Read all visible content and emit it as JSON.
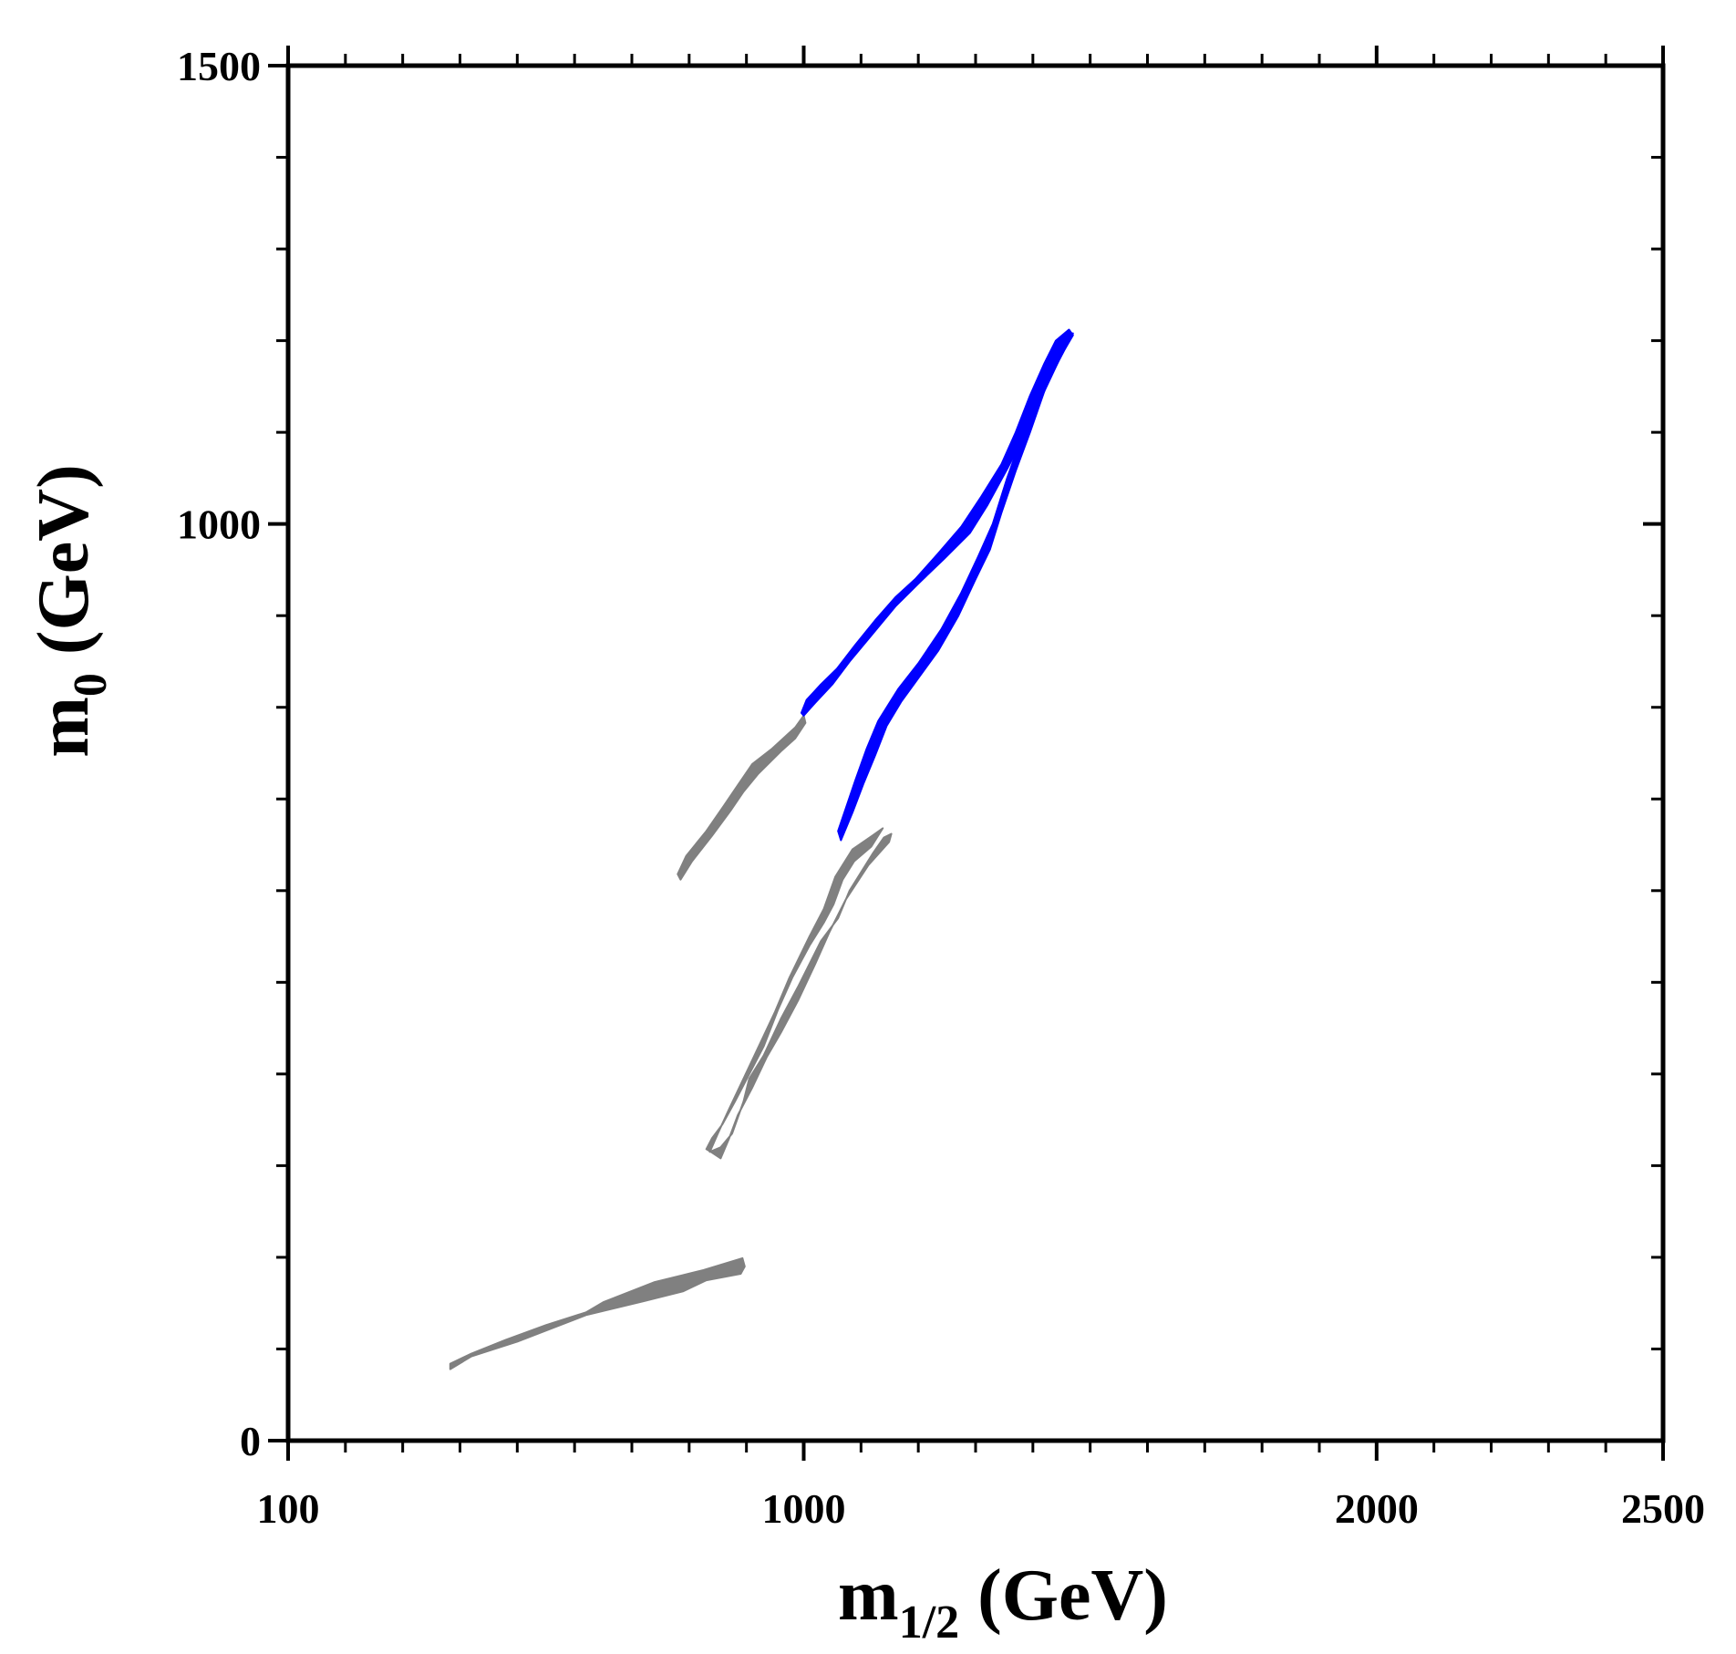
{
  "chart_data": {
    "type": "area",
    "title": "",
    "xlabel": {
      "main": "m",
      "sub": "1/2",
      "unit": " (GeV)"
    },
    "ylabel": {
      "main": "m",
      "sub": "0",
      "unit": " (GeV)"
    },
    "x_tick_labels": [
      {
        "label": "100",
        "value": 100
      },
      {
        "label": "1000",
        "value": 1000
      },
      {
        "label": "2000",
        "value": 2000
      },
      {
        "label": "2500",
        "value": 2500
      }
    ],
    "y_tick_labels": [
      {
        "label": "0",
        "value": 0
      },
      {
        "label": "1000",
        "value": 1000
      },
      {
        "label": "1500",
        "value": 1500
      }
    ],
    "xlim": [
      100,
      2500
    ],
    "ylim": [
      0,
      1500
    ],
    "x_minor_ticks": [
      200,
      300,
      400,
      500,
      600,
      700,
      800,
      900,
      1100,
      1200,
      1300,
      1400,
      1500,
      1600,
      1700,
      1800,
      1900,
      2100,
      2200,
      2300,
      2400
    ],
    "y_minor_ticks": [
      100,
      200,
      300,
      400,
      500,
      600,
      700,
      800,
      900,
      1100,
      1200,
      1300,
      1400
    ],
    "grid": false,
    "colors": {
      "gray": "#808080",
      "blue": "#0000ff"
    },
    "series": [
      {
        "name": "gray lower band",
        "color": "#808080",
        "polygon": [
          [
            383,
            84
          ],
          [
            420,
            95
          ],
          [
            480,
            110
          ],
          [
            550,
            126
          ],
          [
            620,
            140
          ],
          [
            650,
            151
          ],
          [
            740,
            173
          ],
          [
            825,
            186
          ],
          [
            893,
            199
          ],
          [
            897,
            190
          ],
          [
            890,
            182
          ],
          [
            830,
            175
          ],
          [
            790,
            163
          ],
          [
            720,
            152
          ],
          [
            620,
            137
          ],
          [
            500,
            108
          ],
          [
            420,
            92
          ],
          [
            383,
            78
          ]
        ]
      },
      {
        "name": "gray middle band",
        "color": "#808080",
        "polygon": [
          [
            855,
            320
          ],
          [
            875,
            335
          ],
          [
            895,
            370
          ],
          [
            905,
            395
          ],
          [
            930,
            420
          ],
          [
            960,
            460
          ],
          [
            990,
            495
          ],
          [
            1030,
            545
          ],
          [
            1060,
            570
          ],
          [
            1080,
            600
          ],
          [
            1120,
            640
          ],
          [
            1140,
            658
          ],
          [
            1153,
            662
          ],
          [
            1149,
            653
          ],
          [
            1113,
            628
          ],
          [
            1073,
            590
          ],
          [
            1045,
            555
          ],
          [
            1020,
            520
          ],
          [
            990,
            480
          ],
          [
            960,
            445
          ],
          [
            935,
            418
          ],
          [
            910,
            385
          ],
          [
            885,
            355
          ],
          [
            870,
            330
          ],
          [
            855,
            308
          ],
          [
            838,
            315
          ],
          [
            830,
            318
          ],
          [
            840,
            330
          ],
          [
            858,
            345
          ],
          [
            880,
            370
          ],
          [
            905,
            400
          ],
          [
            930,
            430
          ],
          [
            955,
            470
          ],
          [
            980,
            505
          ],
          [
            1010,
            540
          ],
          [
            1035,
            565
          ],
          [
            1052,
            585
          ],
          [
            1068,
            612
          ],
          [
            1088,
            632
          ],
          [
            1118,
            648
          ],
          [
            1138,
            668
          ],
          [
            1120,
            660
          ],
          [
            1085,
            645
          ],
          [
            1055,
            615
          ],
          [
            1035,
            580
          ],
          [
            1010,
            550
          ],
          [
            975,
            505
          ],
          [
            950,
            468
          ],
          [
            920,
            428
          ],
          [
            895,
            395
          ],
          [
            870,
            362
          ],
          [
            850,
            335
          ],
          [
            836,
            315
          ]
        ]
      },
      {
        "name": "gray upper band",
        "color": "#808080",
        "polygon": [
          [
            780,
            618
          ],
          [
            795,
            638
          ],
          [
            830,
            665
          ],
          [
            860,
            692
          ],
          [
            885,
            715
          ],
          [
            910,
            738
          ],
          [
            945,
            755
          ],
          [
            985,
            778
          ],
          [
            1000,
            791
          ],
          [
            1003,
            783
          ],
          [
            985,
            766
          ],
          [
            960,
            752
          ],
          [
            920,
            727
          ],
          [
            895,
            708
          ],
          [
            872,
            687
          ],
          [
            840,
            660
          ],
          [
            805,
            632
          ],
          [
            785,
            612
          ]
        ]
      },
      {
        "name": "blue upper band",
        "color": "#0000ff",
        "polygon": [
          [
            1000,
            791
          ],
          [
            1020,
            805
          ],
          [
            1050,
            825
          ],
          [
            1080,
            850
          ],
          [
            1120,
            880
          ],
          [
            1160,
            910
          ],
          [
            1200,
            935
          ],
          [
            1245,
            962
          ],
          [
            1290,
            990
          ],
          [
            1320,
            1020
          ],
          [
            1355,
            1060
          ],
          [
            1380,
            1090
          ],
          [
            1410,
            1130
          ],
          [
            1430,
            1160
          ],
          [
            1455,
            1190
          ],
          [
            1470,
            1206
          ],
          [
            1463,
            1212
          ],
          [
            1440,
            1200
          ],
          [
            1420,
            1175
          ],
          [
            1395,
            1140
          ],
          [
            1370,
            1100
          ],
          [
            1345,
            1065
          ],
          [
            1310,
            1030
          ],
          [
            1275,
            997
          ],
          [
            1235,
            968
          ],
          [
            1195,
            940
          ],
          [
            1160,
            920
          ],
          [
            1125,
            895
          ],
          [
            1090,
            868
          ],
          [
            1058,
            842
          ],
          [
            1030,
            825
          ],
          [
            1005,
            808
          ],
          [
            996,
            794
          ]
        ]
      },
      {
        "name": "blue lower band",
        "color": "#0000ff",
        "polygon": [
          [
            1060,
            665
          ],
          [
            1090,
            720
          ],
          [
            1110,
            755
          ],
          [
            1130,
            785
          ],
          [
            1165,
            820
          ],
          [
            1200,
            848
          ],
          [
            1240,
            885
          ],
          [
            1275,
            925
          ],
          [
            1305,
            965
          ],
          [
            1330,
            1000
          ],
          [
            1355,
            1050
          ],
          [
            1378,
            1090
          ],
          [
            1400,
            1140
          ],
          [
            1425,
            1170
          ],
          [
            1455,
            1205
          ],
          [
            1470,
            1208
          ],
          [
            1445,
            1178
          ],
          [
            1420,
            1145
          ],
          [
            1395,
            1100
          ],
          [
            1370,
            1058
          ],
          [
            1345,
            1012
          ],
          [
            1325,
            972
          ],
          [
            1300,
            940
          ],
          [
            1270,
            900
          ],
          [
            1235,
            862
          ],
          [
            1200,
            832
          ],
          [
            1170,
            806
          ],
          [
            1145,
            780
          ],
          [
            1125,
            748
          ],
          [
            1105,
            718
          ],
          [
            1085,
            685
          ],
          [
            1065,
            655
          ]
        ]
      }
    ]
  }
}
